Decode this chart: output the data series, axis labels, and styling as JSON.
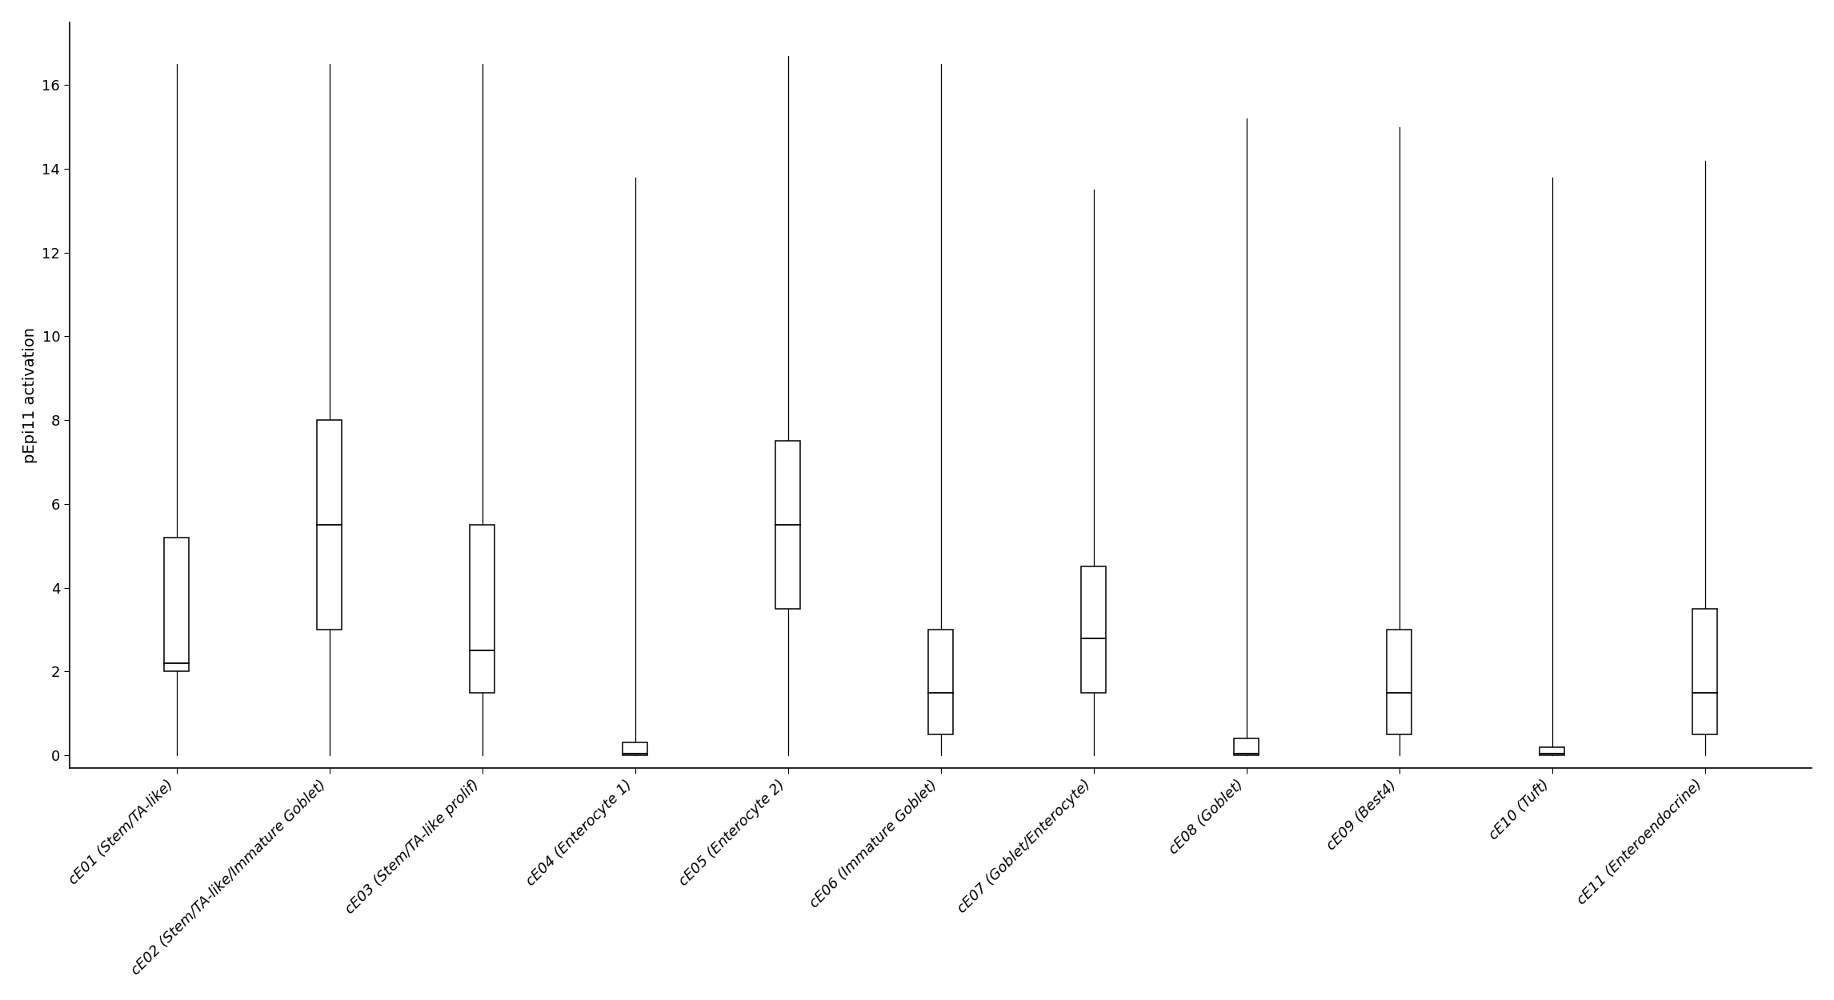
{
  "categories": [
    "cE01 (Stem/TA-like)",
    "cE02 (Stem/TA-like/Immature Goblet)",
    "cE03 (Stem/TA-like prolif)",
    "cE04 (Enterocyte 1)",
    "cE05 (Enterocyte 2)",
    "cE06 (Immature Goblet)",
    "cE07 (Goblet/Enterocyte)",
    "cE08 (Goblet)",
    "cE09 (Best4)",
    "cE10 (Tuft)",
    "cE11 (Enteroendocrine)"
  ],
  "colors": [
    "#adc9e9",
    "#1f6fa5",
    "#9ecf77",
    "#2d7a2d",
    "#f5b4ae",
    "#cc2222",
    "#f5a623",
    "#e07b2a",
    "#c3b1d8",
    "#5b2d8e",
    "#e8e87a"
  ],
  "box_stats": [
    {
      "wl": 0.0,
      "q1": 2.0,
      "med": 2.2,
      "q3": 5.2,
      "wh": 16.5
    },
    {
      "wl": 0.0,
      "q1": 3.0,
      "med": 5.5,
      "q3": 8.0,
      "wh": 16.5
    },
    {
      "wl": 0.0,
      "q1": 1.5,
      "med": 2.5,
      "q3": 5.5,
      "wh": 16.5
    },
    {
      "wl": 0.0,
      "q1": 0.0,
      "med": 0.05,
      "q3": 0.3,
      "wh": 13.8
    },
    {
      "wl": 0.0,
      "q1": 3.5,
      "med": 5.5,
      "q3": 7.5,
      "wh": 16.7
    },
    {
      "wl": 0.0,
      "q1": 0.5,
      "med": 1.5,
      "q3": 3.0,
      "wh": 16.5
    },
    {
      "wl": 0.0,
      "q1": 1.5,
      "med": 2.8,
      "q3": 4.5,
      "wh": 13.5
    },
    {
      "wl": 0.0,
      "q1": 0.0,
      "med": 0.05,
      "q3": 0.4,
      "wh": 15.2
    },
    {
      "wl": 0.0,
      "q1": 0.5,
      "med": 1.5,
      "q3": 3.0,
      "wh": 15.0
    },
    {
      "wl": 0.0,
      "q1": 0.0,
      "med": 0.05,
      "q3": 0.2,
      "wh": 13.8
    },
    {
      "wl": 0.0,
      "q1": 0.5,
      "med": 1.5,
      "q3": 3.5,
      "wh": 14.2
    }
  ],
  "violin_widths": [
    0.55,
    0.85,
    0.55,
    0.12,
    0.65,
    0.42,
    0.55,
    0.12,
    0.45,
    0.09,
    0.5
  ],
  "ylabel": "pEpi11 activation",
  "ylim": [
    -0.3,
    17.5
  ],
  "background_color": "#ffffff",
  "label_fontsize": 13,
  "tick_fontsize": 13,
  "box_width": 0.08
}
